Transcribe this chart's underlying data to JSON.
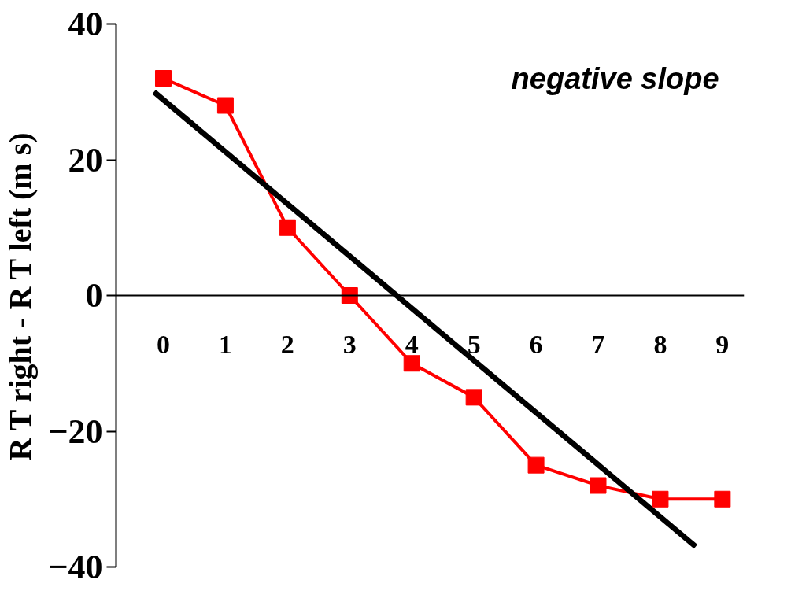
{
  "chart_data": {
    "type": "line",
    "ylabel": "R T right - R T left (m s)",
    "annotations": [
      "negative slope"
    ],
    "xlim": [
      -0.76,
      9.35
    ],
    "xticks": [
      0,
      1,
      2,
      3,
      4,
      5,
      6,
      7,
      8,
      9
    ],
    "ylim": [
      -40,
      40
    ],
    "yticks": [
      -40,
      -20,
      0,
      20,
      40
    ],
    "grid": false,
    "series": [
      {
        "color": "#ff0000",
        "marker": "square",
        "x": [
          0,
          1,
          2,
          3,
          4,
          5,
          6,
          7,
          8,
          9
        ],
        "values": [
          32,
          28,
          10,
          0,
          -10,
          -15,
          -25,
          -28,
          -30,
          -30
        ]
      },
      {
        "color": "#000000",
        "marker": "none",
        "x": [
          -0.15,
          8.57
        ],
        "values": [
          30,
          -37
        ]
      }
    ]
  }
}
